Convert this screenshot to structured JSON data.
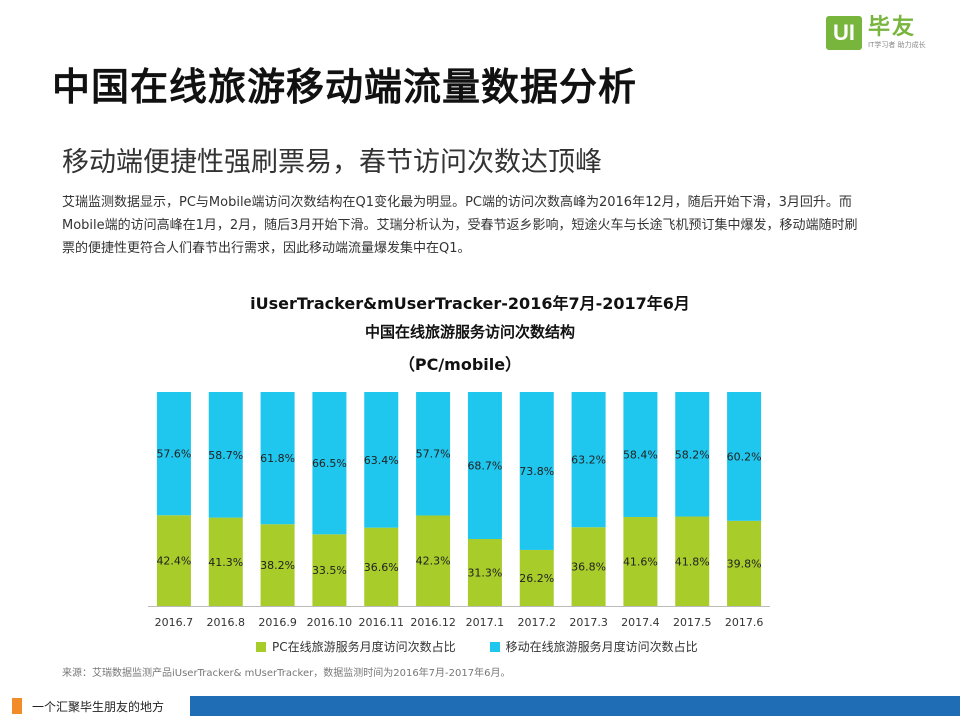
{
  "brand": {
    "logo_box": "UI",
    "logo_name": "毕友",
    "slogan": "IT学习者  助力成长"
  },
  "page": {
    "title": "中国在线旅游移动端流量数据分析",
    "subtitle": "移动端便捷性强刷票易，春节访问次数达顶峰",
    "paragraph": "艾瑞监测数据显示，PC与Mobile端访问次数结构在Q1变化最为明显。PC端的访问次数高峰为2016年12月，随后开始下滑，3月回升。而Mobile端的访问高峰在1月，2月，随后3月开始下滑。艾瑞分析认为，受春节返乡影响，短途火车与长途飞机预订集中爆发，移动端随时刷票的便捷性更符合人们春节出行需求，因此移动端流量爆发集中在Q1。"
  },
  "chart_data": {
    "type": "bar",
    "stacked": true,
    "title_line1": "iUserTracker&mUserTracker-2016年7月-2017年6月",
    "title_line2": "中国在线旅游服务访问次数结构",
    "title_line3": "（PC/mobile）",
    "categories": [
      "2016.7",
      "2016.8",
      "2016.9",
      "2016.10",
      "2016.11",
      "2016.12",
      "2017.1",
      "2017.2",
      "2017.3",
      "2017.4",
      "2017.5",
      "2017.6"
    ],
    "series": [
      {
        "name": "PC在线旅游服务月度访问次数占比",
        "color": "#a8cc2a",
        "values": [
          42.4,
          41.3,
          38.2,
          33.5,
          36.6,
          42.3,
          31.3,
          26.2,
          36.8,
          41.6,
          41.8,
          39.8
        ],
        "labels": [
          "42.4%",
          "41.3%",
          "38.2%",
          "33.5%",
          "36.6%",
          "42.3%",
          "31.3%",
          "26.2%",
          "36.8%",
          "41.6%",
          "41.8%",
          "39.8%"
        ]
      },
      {
        "name": "移动在线旅游服务月度访问次数占比",
        "color": "#1fc6ee",
        "values": [
          57.6,
          58.7,
          61.8,
          66.5,
          63.4,
          57.7,
          68.7,
          73.8,
          63.2,
          58.4,
          58.2,
          60.2
        ],
        "labels": [
          "57.6%",
          "58.7%",
          "61.8%",
          "66.5%",
          "63.4%",
          "57.7%",
          "68.7%",
          "73.8%",
          "63.2%",
          "58.4%",
          "58.2%",
          "60.2%"
        ]
      }
    ],
    "ylim": [
      0,
      100
    ],
    "xlabel": "",
    "ylabel": "",
    "source": "来源：艾瑞数据监测产品iUserTracker& mUserTracker，数据监测时间为2016年7月-2017年6月。"
  },
  "footer": {
    "text": "一个汇聚毕生朋友的地方"
  }
}
